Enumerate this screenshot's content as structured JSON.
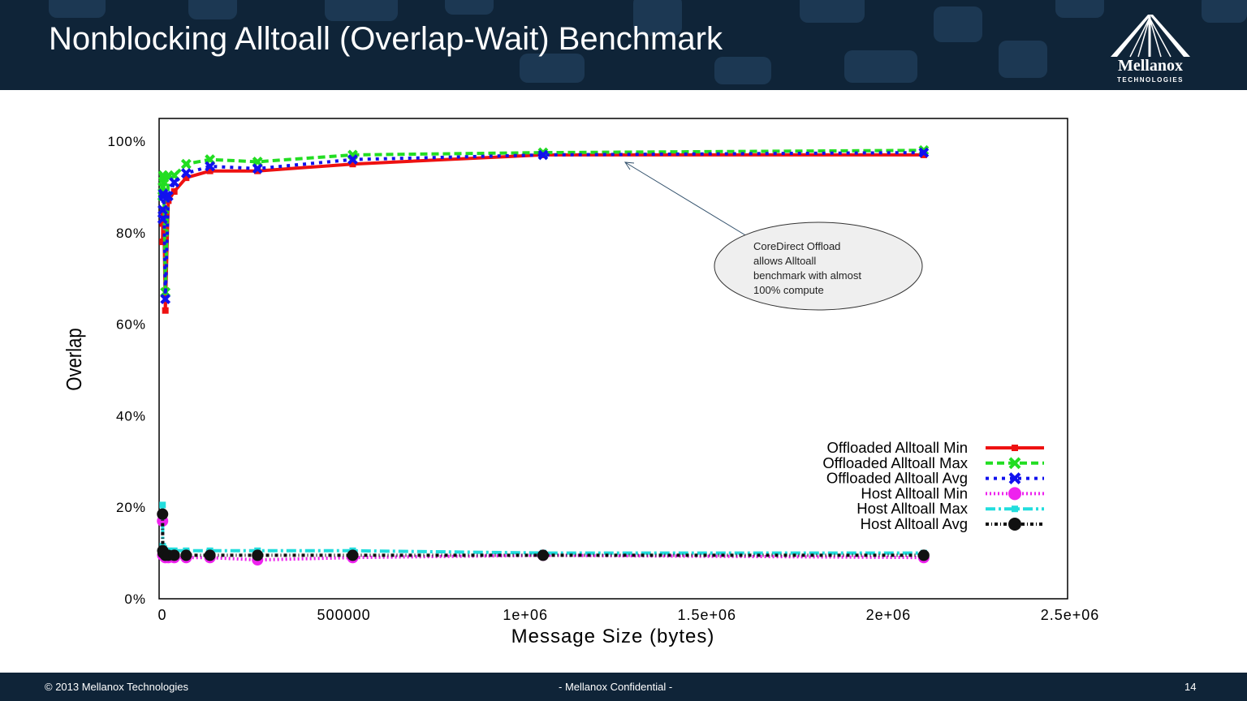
{
  "slide": {
    "title": "Nonblocking Alltoall (Overlap-Wait) Benchmark",
    "footer_left": "© 2013 Mellanox Technologies",
    "footer_center": "- Mellanox Confidential -",
    "footer_page": "14"
  },
  "logo": {
    "name": "Mellanox",
    "sub": "TECHNOLOGIES",
    "icon": "mellanox-bridge-logo"
  },
  "colors": {
    "header_bg": "#0f2438",
    "accent": "#1f3c58"
  },
  "chart_data": {
    "type": "line",
    "xlabel": "Message Size (bytes)",
    "ylabel": "Overlap",
    "xlim": [
      0,
      2500000
    ],
    "ylim": [
      0,
      100
    ],
    "xticks": [
      0,
      500000,
      1000000,
      1500000,
      2000000,
      2500000
    ],
    "xtick_labels": [
      "0",
      "500000",
      "1e+06",
      "1.5e+06",
      "2e+06",
      "2.5e+06"
    ],
    "yticks": [
      0,
      20,
      40,
      60,
      80,
      100
    ],
    "ytick_labels": [
      "0%",
      "20%",
      "40%",
      "60%",
      "80%",
      "100%"
    ],
    "grid": false,
    "legend_position": "bottom-right",
    "annotation": "CoreDirect Offload allows Alltoall benchmark with almost 100% compute",
    "series": [
      {
        "name": "Offloaded Alltoall Min",
        "color": "#ee1111",
        "dash": "",
        "width": 4,
        "marker": "square",
        "x": [
          512,
          1024,
          2048,
          4096,
          8192,
          16384,
          32768,
          65536,
          131072,
          262144,
          524288,
          1048576,
          2097152
        ],
        "y": [
          78,
          82,
          85,
          84,
          63,
          87,
          89,
          92,
          93.5,
          93.5,
          95,
          97,
          97
        ]
      },
      {
        "name": "Offloaded Alltoall Max",
        "color": "#22dd22",
        "dash": "9,5",
        "width": 4,
        "marker": "x",
        "x": [
          512,
          1024,
          2048,
          4096,
          8192,
          16384,
          32768,
          65536,
          131072,
          262144,
          524288,
          1048576,
          2097152
        ],
        "y": [
          88,
          90,
          92.5,
          92,
          67,
          92.5,
          92.5,
          95,
          96,
          95.5,
          97,
          97.5,
          98
        ]
      },
      {
        "name": "Offloaded Alltoall Avg",
        "color": "#1111ee",
        "dash": "4,6",
        "width": 4,
        "marker": "x",
        "x": [
          512,
          1024,
          2048,
          4096,
          8192,
          16384,
          32768,
          65536,
          131072,
          262144,
          524288,
          1048576,
          2097152
        ],
        "y": [
          83,
          85,
          88.5,
          88,
          65.5,
          88,
          91,
          93,
          94.5,
          94,
          96,
          97,
          97.5
        ]
      },
      {
        "name": "Host Alltoall Min",
        "color": "#ee22ee",
        "dash": "2,3",
        "width": 4,
        "marker": "circle",
        "x": [
          512,
          1024,
          2048,
          4096,
          8192,
          16384,
          32768,
          65536,
          131072,
          262144,
          524288,
          1048576,
          2097152
        ],
        "y": [
          17,
          9.5,
          9.5,
          9.5,
          9,
          9,
          9,
          9,
          9,
          8.5,
          9,
          9.5,
          9
        ]
      },
      {
        "name": "Host Alltoall Max",
        "color": "#22dddd",
        "dash": "12,4,3,4",
        "width": 4,
        "marker": "square",
        "x": [
          512,
          1024,
          2048,
          4096,
          8192,
          16384,
          32768,
          65536,
          131072,
          262144,
          524288,
          1048576,
          2097152
        ],
        "y": [
          20.5,
          11.5,
          11,
          11,
          10.5,
          10.5,
          10.5,
          10.5,
          10.5,
          10.5,
          10.5,
          10,
          10
        ]
      },
      {
        "name": "Host Alltoall Avg",
        "color": "#111111",
        "dash": "4,3,1,3",
        "width": 4,
        "marker": "circle",
        "x": [
          512,
          1024,
          2048,
          4096,
          8192,
          16384,
          32768,
          65536,
          131072,
          262144,
          524288,
          1048576,
          2097152
        ],
        "y": [
          18.5,
          10.5,
          10,
          10,
          9.5,
          9.5,
          9.5,
          9.5,
          9.5,
          9.5,
          9.5,
          9.5,
          9.5
        ]
      }
    ]
  }
}
